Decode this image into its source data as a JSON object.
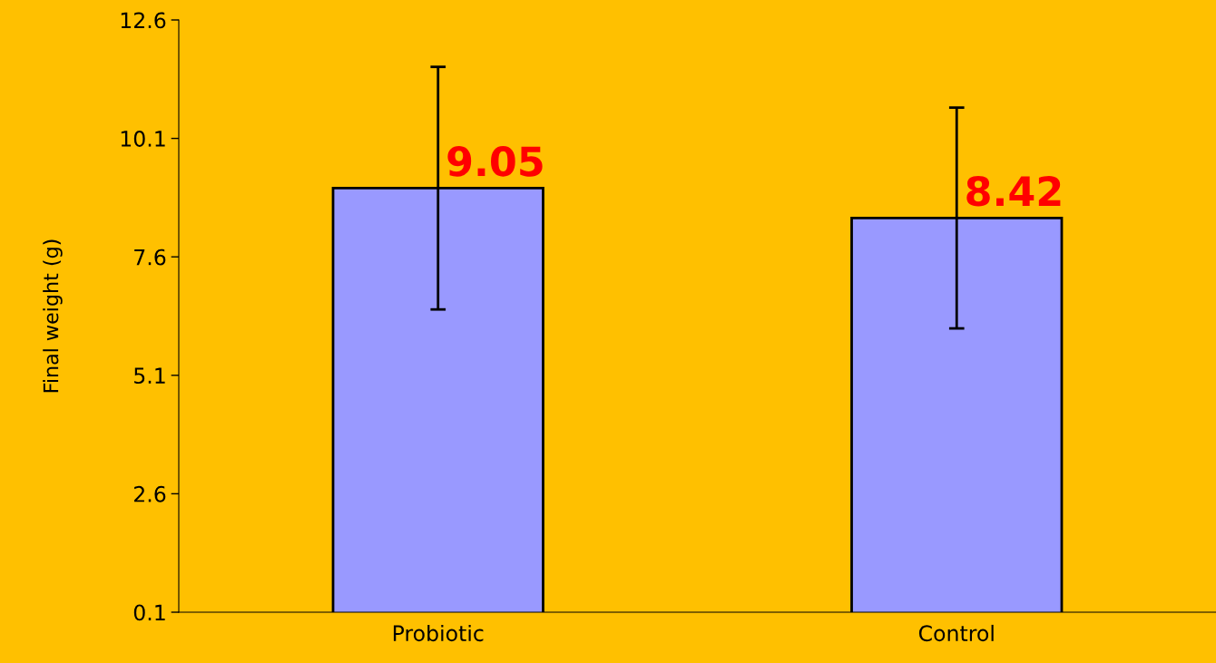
{
  "chart_data": {
    "type": "bar",
    "ylabel": "Final weight (g)",
    "categories": [
      "Probiotic",
      "Control"
    ],
    "values": [
      9.05,
      8.42
    ],
    "color": "#9999ff",
    "errors": [
      2.56,
      2.33
    ],
    "data_labels": true,
    "ylim": [
      0.1,
      12.6
    ],
    "yticks": [
      0.1,
      2.6,
      5.1,
      7.6,
      10.1,
      12.6
    ],
    "grid": false,
    "legend": false
  }
}
